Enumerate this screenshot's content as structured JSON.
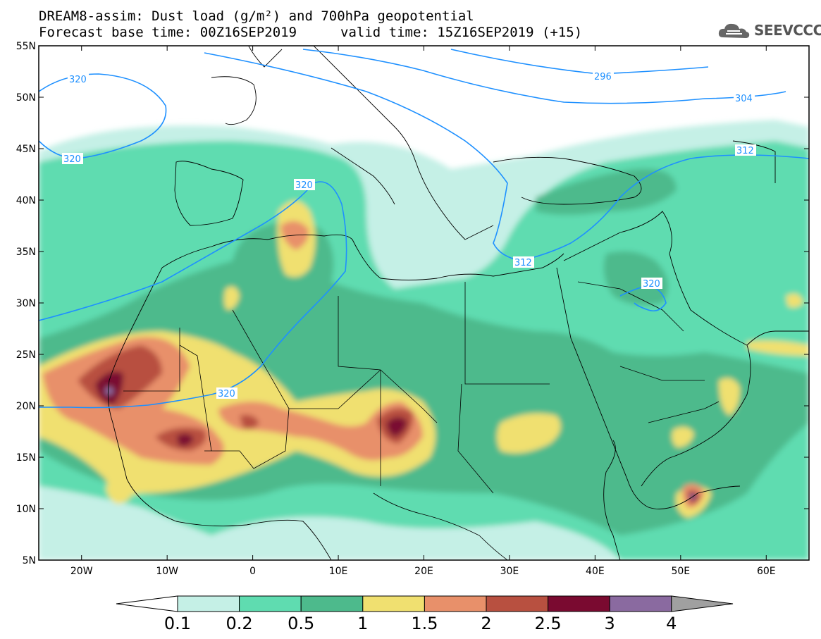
{
  "title": {
    "line1": "DREAM8-assim: Dust load (g/m²) and 700hPa geopotential",
    "line2_base": "Forecast base time: 00Z16SEP2019",
    "line2_valid": "valid time: 15Z16SEP2019 (+15)"
  },
  "logo": {
    "text": "SEEVCCC",
    "icon": "cloud-icon"
  },
  "axes": {
    "lat_ticks": [
      "55N",
      "50N",
      "45N",
      "40N",
      "35N",
      "30N",
      "25N",
      "20N",
      "15N",
      "10N",
      "5N"
    ],
    "lon_ticks": [
      "20W",
      "10W",
      "0",
      "10E",
      "20E",
      "30E",
      "40E",
      "50E",
      "60E"
    ],
    "lat_range": [
      5,
      55
    ],
    "lon_range": [
      -25,
      65
    ]
  },
  "colorbar": {
    "labels": [
      "0.1",
      "0.2",
      "0.5",
      "1",
      "1.5",
      "2",
      "2.5",
      "3",
      "4"
    ],
    "colors": [
      "#c5f0e6",
      "#5fdcb0",
      "#4dba8c",
      "#f0e070",
      "#e8906a",
      "#b85040",
      "#7a0a30",
      "#8a6aa0",
      "#a0a0a0"
    ],
    "under_color": "#ffffff"
  },
  "contour_labels": [
    "320",
    "320",
    "296",
    "304",
    "312",
    "320",
    "312",
    "320",
    "320"
  ],
  "contour_color": "#1e90ff"
}
